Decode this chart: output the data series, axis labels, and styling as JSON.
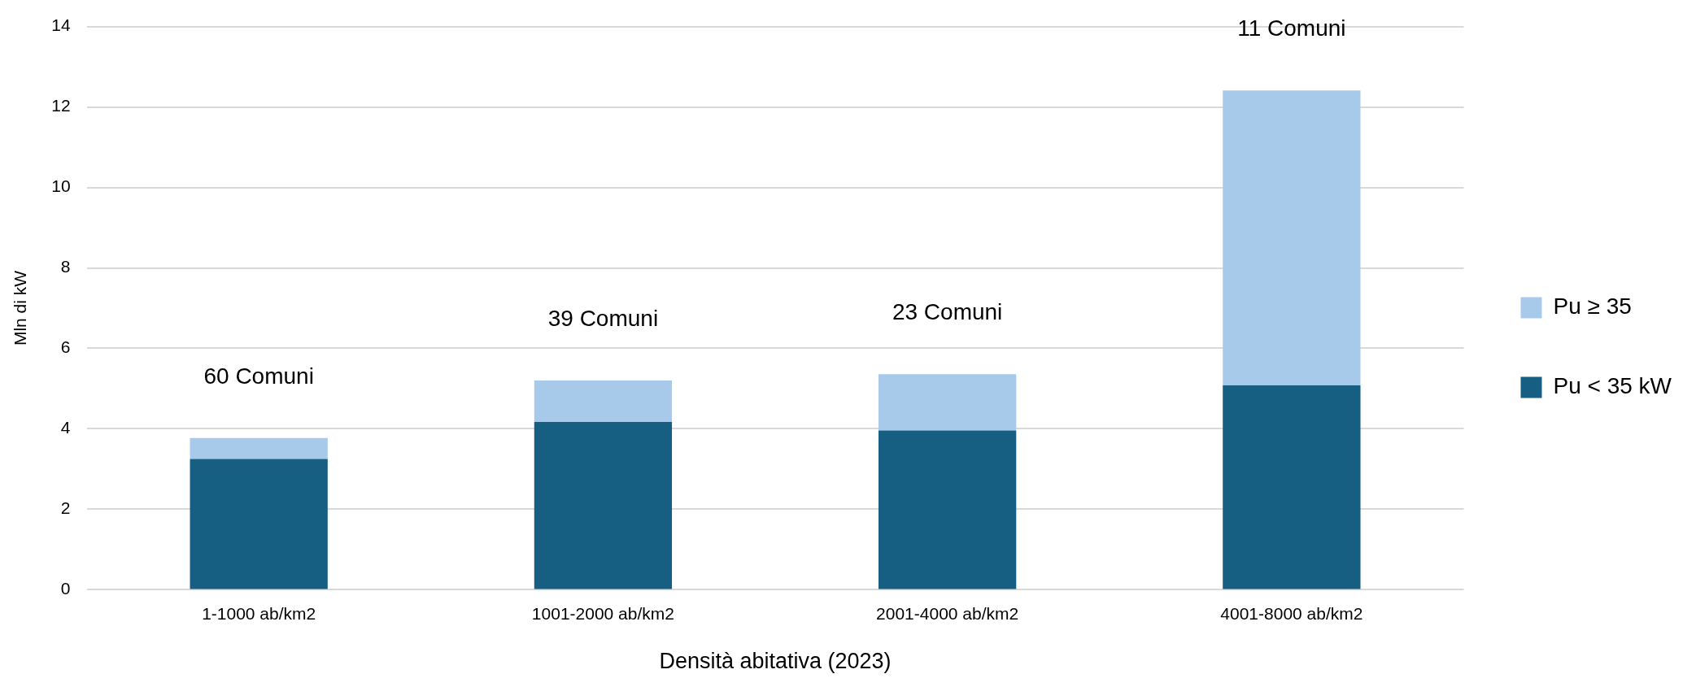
{
  "chart_data": {
    "type": "bar",
    "stacked": true,
    "xlabel": "Densità abitativa (2023)",
    "ylabel": "Mln di kW",
    "categories": [
      "1-1000 ab/km2",
      "1001-2000 ab/km2",
      "2001-4000 ab/km2",
      "4001-8000 ab/km2"
    ],
    "series": [
      {
        "name": "Pu < 35 kW",
        "color": "#175f82",
        "values": [
          3.25,
          4.17,
          3.96,
          5.08
        ]
      },
      {
        "name": "Pu ≥ 35",
        "color": "#a7caeb",
        "values": [
          0.52,
          1.03,
          1.4,
          7.33
        ]
      }
    ],
    "ylim": [
      0,
      14
    ],
    "yticks": [
      0,
      2,
      4,
      6,
      8,
      10,
      12,
      14
    ],
    "grid": "y",
    "legend": "right",
    "annotations": [
      "60 Comuni",
      "39 Comuni",
      "23 Comuni",
      "11 Comuni"
    ]
  }
}
